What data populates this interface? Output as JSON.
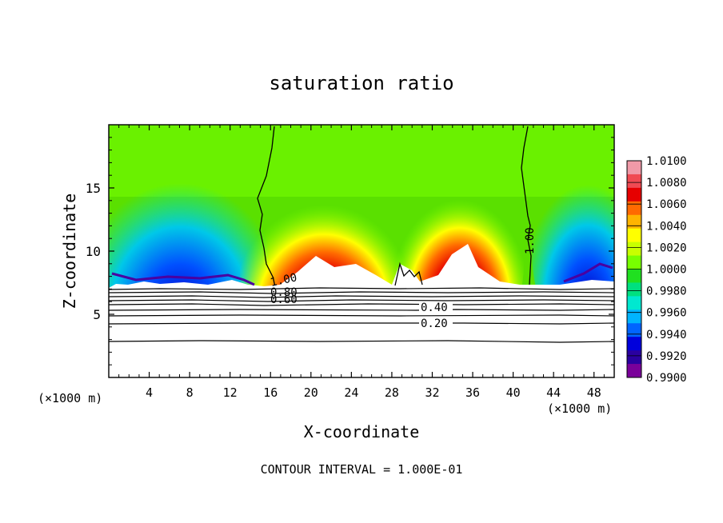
{
  "chart_data": {
    "type": "heatmap",
    "title": "saturation ratio",
    "xlabel": "X-coordinate",
    "ylabel": "Z-coordinate",
    "x_unit_left": "(×1000 m)",
    "x_unit_right": "(×1000 m)",
    "xlim": [
      0,
      50
    ],
    "ylim": [
      0,
      20
    ],
    "x_ticks": [
      4,
      8,
      12,
      16,
      20,
      24,
      28,
      32,
      36,
      40,
      44,
      48
    ],
    "y_ticks": [
      5,
      10,
      15
    ],
    "colorbar": {
      "labels": [
        "1.0100",
        "1.0080",
        "1.0060",
        "1.0040",
        "1.0020",
        "1.0000",
        "0.9980",
        "0.9960",
        "0.9940",
        "0.9920",
        "0.9900"
      ],
      "range": [
        0.99,
        1.01
      ],
      "colors": [
        "#f09aa8",
        "#f04a52",
        "#e60000",
        "#ff6a00",
        "#ffb400",
        "#ffff00",
        "#c8ff00",
        "#78ff00",
        "#20e020",
        "#00e080",
        "#00e8d0",
        "#00b4ff",
        "#0064ff",
        "#0000dc",
        "#2a00a0",
        "#7a009a"
      ]
    },
    "contours": [
      {
        "value": 1.0,
        "label": "1.00"
      },
      {
        "value": 0.8,
        "label": "0.80"
      },
      {
        "value": 0.6,
        "label": "0.60"
      },
      {
        "value": 0.4,
        "label": "0.40"
      },
      {
        "value": 0.2,
        "label": "0.20"
      }
    ],
    "extra_contour_labels": [
      "0.80",
      "0.60",
      "1.00"
    ],
    "footer": "CONTOUR INTERVAL = 1.000E-01"
  }
}
